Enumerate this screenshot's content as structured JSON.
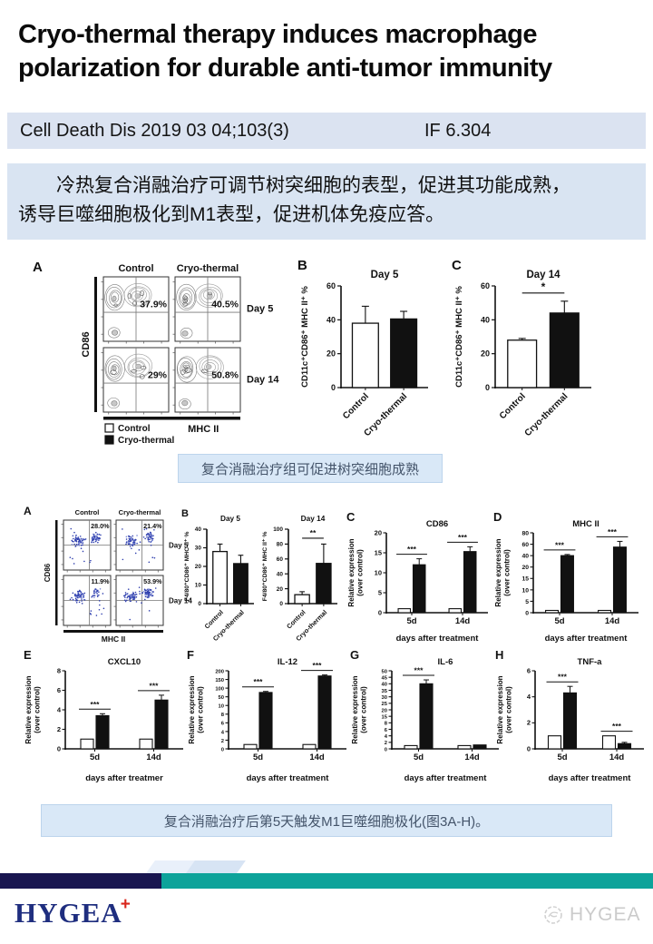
{
  "title": {
    "line1": "Cryo-thermal therapy induces macrophage",
    "line2": "polarization for durable anti-tumor immunity"
  },
  "citation": {
    "journal": "Cell Death Dis 2019 03 04;103(3)",
    "impact_factor": "IF 6.304"
  },
  "abstract": {
    "line1": "冷热复合消融治疗可调节树突细胞的表型，促进其功能成熟，",
    "line2": "诱导巨噬细胞极化到M1表型，促进机体免疫应答。"
  },
  "caption1": "复合消融治疗组可促进树突细胞成熟",
  "caption2": "复合消融治疗后第5天触发M1巨噬细胞极化(图3A-H)。",
  "footer": {
    "logo": "HYGEA",
    "logo_plus": "+",
    "watermark": "HYGEA"
  },
  "colors": {
    "cite_bg": "#dbe3f1",
    "abstract_bg": "#d9e4f2",
    "caption_bg": "#d9e8f7",
    "footer_navy": "#191650",
    "footer_teal": "#0da39a",
    "accent_light": "#e9f0fa",
    "accent_mid": "#d7e4f4",
    "logo_navy": "#1f2e7f",
    "logo_red": "#d9261c",
    "dot_blue": "#2f3fae"
  },
  "figure1": {
    "panelA": {
      "label": "A",
      "type": "contour",
      "col_headers": [
        "Control",
        "Cryo-thermal"
      ],
      "row_labels": [
        "Day 5",
        "Day 14"
      ],
      "quadrant_pct": [
        [
          "37.9%",
          "40.5%"
        ],
        [
          "29%",
          "50.8%"
        ]
      ],
      "xaxis": "MHC II",
      "yaxis": "CD86",
      "legend": [
        {
          "label": "Control",
          "fill": "white"
        },
        {
          "label": "Cryo-thermal",
          "fill": "black"
        }
      ]
    },
    "panelB": {
      "label": "B",
      "title": "Day 5",
      "ylabel": "CD11c⁺CD86⁺ MHC II⁺ %",
      "yticks": [
        0,
        20,
        40,
        60
      ],
      "categories": [
        "Control",
        "Cryo-thermal"
      ],
      "values": [
        38,
        40.5
      ],
      "errors": [
        10,
        4.5
      ],
      "fills": [
        "white",
        "black"
      ]
    },
    "panelC": {
      "label": "C",
      "title": "Day 14",
      "ylabel": "CD11c⁺CD86⁺ MHC II⁺ %",
      "yticks": [
        0,
        20,
        40,
        60
      ],
      "categories": [
        "Control",
        "Cryo-thermal"
      ],
      "values": [
        28,
        44
      ],
      "errors": [
        1,
        7
      ],
      "fills": [
        "white",
        "black"
      ],
      "bracket_sig": "*"
    }
  },
  "figure2": {
    "panelA": {
      "label": "A",
      "type": "dots",
      "col_headers": [
        "Control",
        "Cryo-thermal"
      ],
      "row_labels": [
        "Day 5",
        "Day 14"
      ],
      "quadrant_pct": [
        [
          "28.0%",
          "21.4%"
        ],
        [
          "11.9%",
          "53.9%"
        ]
      ],
      "xaxis": "MHC II",
      "yaxis": "CD86"
    },
    "panelB_day5": {
      "label": "B",
      "title": "Day 5",
      "ylabel": "F4/80⁺CD86⁺ MHC II⁺ %",
      "yticks": [
        0,
        10,
        20,
        30,
        40
      ],
      "categories": [
        "Control",
        "Cryo-thermal"
      ],
      "values": [
        28,
        21.5
      ],
      "errors": [
        4,
        4.5
      ],
      "fills": [
        "white",
        "black"
      ]
    },
    "panelB_day14": {
      "title": "Day 14",
      "ylabel": "F4/80⁺CD86⁺ MHC II⁺ %",
      "yticks": [
        0,
        20,
        40,
        60,
        80,
        100
      ],
      "categories": [
        "Control",
        "Cryo-thermal"
      ],
      "values": [
        12,
        54
      ],
      "errors": [
        4,
        26
      ],
      "fills": [
        "white",
        "black"
      ],
      "bracket_sig": "**"
    },
    "panelC": {
      "label": "C",
      "title": "CD86",
      "ylabel": [
        "Relative expression",
        "(over control)"
      ],
      "yticks": [
        0,
        5,
        10,
        15,
        20
      ],
      "groups": [
        "5d",
        "14d"
      ],
      "series": [
        {
          "name": "Control",
          "fill": "white",
          "values": [
            1,
            1
          ],
          "errors": [
            0,
            0
          ]
        },
        {
          "name": "Cryo-thermal",
          "fill": "black",
          "values": [
            12,
            15.3
          ],
          "errors": [
            1.5,
            1.2
          ]
        }
      ],
      "sig": [
        "***",
        "***"
      ],
      "xlabel": "days after treatment"
    },
    "panelD": {
      "label": "D",
      "title": "MHC II",
      "ylabel": [
        "Relative expression",
        "(over control)"
      ],
      "yticks": [
        0,
        5,
        10,
        15,
        20,
        40,
        60,
        80
      ],
      "groups": [
        "5d",
        "14d"
      ],
      "series": [
        {
          "name": "Control",
          "fill": "white",
          "values": [
            1,
            1
          ],
          "errors": [
            0,
            0
          ]
        },
        {
          "name": "Cryo-thermal",
          "fill": "black",
          "values": [
            40,
            55
          ],
          "errors": [
            2,
            10
          ]
        }
      ],
      "sig": [
        "***",
        "***"
      ],
      "xlabel": "days after treatment"
    },
    "panelE": {
      "label": "E",
      "title": "CXCL10",
      "ylabel": [
        "Relative expression",
        "(over control)"
      ],
      "yticks": [
        0,
        2,
        4,
        6,
        8
      ],
      "groups": [
        "5d",
        "14d"
      ],
      "series": [
        {
          "name": "Control",
          "fill": "white",
          "values": [
            1,
            1
          ],
          "errors": [
            0,
            0
          ]
        },
        {
          "name": "Cryo-thermal",
          "fill": "black",
          "values": [
            3.4,
            5
          ],
          "errors": [
            0.2,
            0.5
          ]
        }
      ],
      "sig": [
        "***",
        "***"
      ],
      "xlabel": "days after treatmer"
    },
    "panelF": {
      "label": "F",
      "title": "IL-12",
      "ylabel": [
        "Relative expression",
        "(over control)"
      ],
      "yticks": [
        0,
        2,
        4,
        6,
        8,
        10,
        50,
        100,
        150,
        200
      ],
      "groups": [
        "5d",
        "14d"
      ],
      "series": [
        {
          "name": "Control",
          "fill": "white",
          "values": [
            1,
            1
          ],
          "errors": [
            0,
            0
          ]
        },
        {
          "name": "Cryo-thermal",
          "fill": "black",
          "values": [
            75,
            170
          ],
          "errors": [
            6,
            6
          ]
        }
      ],
      "sig": [
        "***",
        "***"
      ],
      "xlabel": "days after treatment"
    },
    "panelG": {
      "label": "G",
      "title": "IL-6",
      "ylabel": [
        "Relative expression",
        "(over control)"
      ],
      "yticks": [
        0,
        2,
        4,
        6,
        8,
        15,
        20,
        25,
        30,
        35,
        40,
        45,
        50
      ],
      "groups": [
        "5d",
        "14d"
      ],
      "series": [
        {
          "name": "Control",
          "fill": "white",
          "values": [
            1,
            1
          ],
          "errors": [
            0,
            0
          ]
        },
        {
          "name": "Cryo-thermal",
          "fill": "black",
          "values": [
            40,
            1.2
          ],
          "errors": [
            3,
            0
          ]
        }
      ],
      "sig": [
        "***",
        null
      ],
      "xlabel": "days after treatment"
    },
    "panelH": {
      "label": "H",
      "title": "TNF-a",
      "ylabel": [
        "Relative expression",
        "(over control)"
      ],
      "yticks": [
        0,
        2,
        4,
        6
      ],
      "groups": [
        "5d",
        "14d"
      ],
      "series": [
        {
          "name": "Control",
          "fill": "white",
          "values": [
            1,
            1
          ],
          "errors": [
            0,
            0
          ]
        },
        {
          "name": "Cryo-thermal",
          "fill": "black",
          "values": [
            4.3,
            0.4
          ],
          "errors": [
            0.5,
            0.1
          ]
        }
      ],
      "sig": [
        "***",
        "***"
      ],
      "xlabel": "days after treatment"
    }
  }
}
